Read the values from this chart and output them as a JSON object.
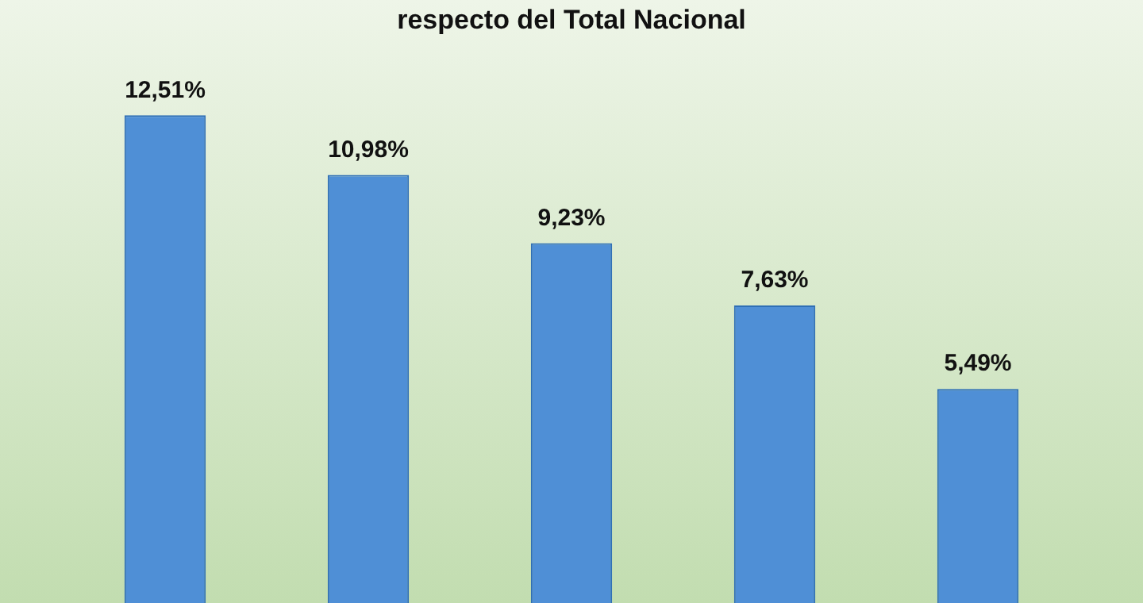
{
  "chart_data": {
    "type": "bar",
    "title": "respecto del Total Nacional",
    "categories": [
      null,
      null,
      null,
      null,
      null
    ],
    "values": [
      12.51,
      10.98,
      9.23,
      7.63,
      5.49
    ],
    "value_labels": [
      "12,51%",
      "10,98%",
      "9,23%",
      "7,63%",
      "5,49%"
    ],
    "color": "#4f8fd6",
    "legend": false
  }
}
